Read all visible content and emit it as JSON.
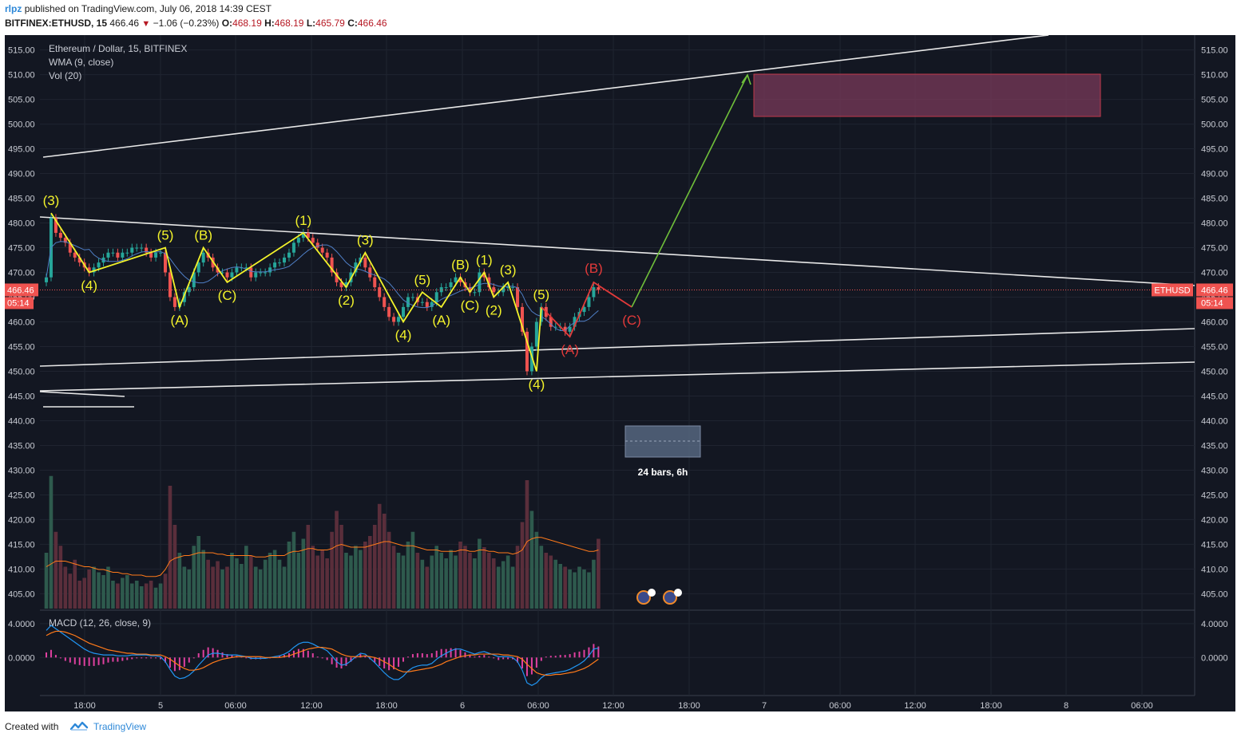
{
  "header": {
    "user": "rlpz",
    "published": "published on TradingView.com, July 06, 2018 14:39 CEST",
    "symbol": "BITFINEX:ETHUSD, 15",
    "last": "466.46",
    "change": "−1.06 (−0.23%)",
    "o_label": "O:",
    "o_value": "468.19",
    "h_label": "H:",
    "h_value": "468.19",
    "l_label": "L:",
    "l_value": "465.79",
    "c_label": "C:",
    "c_value": "466.46"
  },
  "legend": {
    "title": "Ethereum / Dollar, 15, BITFINEX",
    "wma": "WMA (9, close)",
    "vol": "Vol (20)",
    "macd": "MACD (12, 26, close, 9)"
  },
  "footer": {
    "created_with": "Created with",
    "brand": "TradingView"
  },
  "colors": {
    "background": "#131722",
    "grid": "#1f2430",
    "axis_text": "#c9ccd4",
    "up": "#26a69a",
    "down": "#ef5350",
    "wave_yellow": "#f3f32a",
    "wave_red": "#e33a3a",
    "trend_white": "#e8e8e8",
    "target_arrow": "#6fbf3a",
    "target_box": "#7a3a5a",
    "macd": "#2196f3",
    "signal": "#ff7a1a",
    "histogram": "#e040a0"
  },
  "chart_data": {
    "type": "candlestick",
    "symbol": "ETHUSD",
    "exchange": "BITFINEX",
    "interval": "15",
    "price_axis": {
      "ylim": [
        402,
        518
      ],
      "ticks": [
        "515.00",
        "510.00",
        "505.00",
        "500.00",
        "495.00",
        "490.00",
        "485.00",
        "480.00",
        "475.00",
        "470.00",
        "465.00",
        "460.00",
        "455.00",
        "450.00",
        "445.00",
        "440.00",
        "435.00",
        "430.00",
        "425.00",
        "420.00",
        "415.00",
        "410.00",
        "405.00"
      ]
    },
    "time_axis": {
      "ticks": [
        "18:00",
        "5",
        "06:00",
        "12:00",
        "18:00",
        "6",
        "06:00",
        "12:00",
        "18:00",
        "7",
        "06:00",
        "12:00",
        "18:00",
        "8",
        "06:00"
      ]
    },
    "last_price": "466.46",
    "last_price_label": "ETHUSD",
    "countdown": "05:14",
    "price_path": [
      [
        0,
        469
      ],
      [
        1,
        481
      ],
      [
        2,
        478
      ],
      [
        3,
        477
      ],
      [
        4,
        476
      ],
      [
        5,
        474
      ],
      [
        6,
        473
      ],
      [
        7,
        472
      ],
      [
        8,
        471
      ],
      [
        9,
        470
      ],
      [
        10,
        471
      ],
      [
        11,
        472
      ],
      [
        12,
        473
      ],
      [
        13,
        474
      ],
      [
        14,
        474
      ],
      [
        15,
        473
      ],
      [
        16,
        474
      ],
      [
        17,
        474
      ],
      [
        18,
        475
      ],
      [
        19,
        475
      ],
      [
        20,
        475
      ],
      [
        21,
        474
      ],
      [
        22,
        473
      ],
      [
        23,
        474
      ],
      [
        24,
        474
      ],
      [
        25,
        470
      ],
      [
        26,
        465
      ],
      [
        27,
        463
      ],
      [
        28,
        464
      ],
      [
        29,
        466
      ],
      [
        30,
        467
      ],
      [
        31,
        470
      ],
      [
        32,
        472
      ],
      [
        33,
        474
      ],
      [
        34,
        473
      ],
      [
        35,
        471
      ],
      [
        36,
        470
      ],
      [
        37,
        470
      ],
      [
        38,
        469
      ],
      [
        39,
        470
      ],
      [
        40,
        471
      ],
      [
        41,
        471
      ],
      [
        42,
        471
      ],
      [
        43,
        469
      ],
      [
        44,
        470
      ],
      [
        45,
        470
      ],
      [
        46,
        470
      ],
      [
        47,
        471
      ],
      [
        48,
        472
      ],
      [
        49,
        472
      ],
      [
        50,
        473
      ],
      [
        51,
        474
      ],
      [
        52,
        476
      ],
      [
        53,
        477
      ],
      [
        54,
        478
      ],
      [
        55,
        477
      ],
      [
        56,
        476
      ],
      [
        57,
        475
      ],
      [
        58,
        474
      ],
      [
        59,
        473
      ],
      [
        60,
        470
      ],
      [
        61,
        468
      ],
      [
        62,
        467
      ],
      [
        63,
        468
      ],
      [
        64,
        470
      ],
      [
        65,
        472
      ],
      [
        66,
        473
      ],
      [
        67,
        471
      ],
      [
        68,
        469
      ],
      [
        69,
        467
      ],
      [
        70,
        465
      ],
      [
        71,
        463
      ],
      [
        72,
        461
      ],
      [
        73,
        460
      ],
      [
        74,
        461
      ],
      [
        75,
        463
      ],
      [
        76,
        465
      ],
      [
        77,
        465
      ],
      [
        78,
        464
      ],
      [
        79,
        464
      ],
      [
        80,
        463
      ],
      [
        81,
        464
      ],
      [
        82,
        466
      ],
      [
        83,
        467
      ],
      [
        84,
        467
      ],
      [
        85,
        468
      ],
      [
        86,
        469
      ],
      [
        87,
        468
      ],
      [
        88,
        467
      ],
      [
        89,
        466
      ],
      [
        90,
        466
      ],
      [
        91,
        470
      ],
      [
        92,
        469
      ],
      [
        93,
        467
      ],
      [
        94,
        466
      ],
      [
        95,
        466
      ],
      [
        96,
        467
      ],
      [
        97,
        467
      ],
      [
        98,
        467
      ],
      [
        99,
        463
      ],
      [
        100,
        458
      ],
      [
        101,
        450
      ],
      [
        102,
        455
      ],
      [
        103,
        460
      ],
      [
        104,
        463
      ],
      [
        105,
        461
      ],
      [
        106,
        459
      ],
      [
        107,
        459
      ],
      [
        108,
        459
      ],
      [
        109,
        458
      ],
      [
        110,
        459
      ],
      [
        111,
        461
      ],
      [
        112,
        462
      ],
      [
        113,
        463
      ],
      [
        114,
        465
      ],
      [
        115,
        467
      ],
      [
        116,
        466.46
      ]
    ],
    "volume": {
      "series_name": "Vol (20)",
      "scale_max": 100,
      "bars": [
        40,
        95,
        55,
        45,
        30,
        25,
        35,
        20,
        22,
        28,
        30,
        26,
        24,
        30,
        20,
        18,
        22,
        24,
        18,
        20,
        16,
        18,
        20,
        15,
        18,
        25,
        88,
        60,
        40,
        30,
        28,
        45,
        52,
        42,
        35,
        30,
        34,
        28,
        30,
        40,
        36,
        32,
        45,
        38,
        30,
        28,
        35,
        40,
        42,
        35,
        30,
        48,
        55,
        40,
        50,
        60,
        45,
        38,
        42,
        36,
        55,
        70,
        60,
        40,
        38,
        45,
        42,
        48,
        52,
        60,
        75,
        68,
        55,
        45,
        40,
        38,
        48,
        55,
        40,
        35,
        30,
        38,
        45,
        40,
        36,
        42,
        38,
        48,
        45,
        40,
        36,
        50,
        44,
        40,
        36,
        30,
        34,
        38,
        30,
        45,
        62,
        92,
        70,
        55,
        45,
        40,
        38,
        35,
        32,
        30,
        28,
        26,
        30,
        28,
        26,
        35,
        50
      ],
      "ma": [
        30,
        32,
        34,
        34,
        34,
        33,
        32,
        31,
        30,
        30,
        29,
        28,
        28,
        27,
        26,
        26,
        25,
        25,
        24,
        24,
        24,
        23,
        23,
        23,
        24,
        28,
        34,
        36,
        37,
        38,
        38,
        39,
        40,
        40,
        40,
        40,
        39,
        39,
        38,
        38,
        38,
        38,
        38,
        38,
        37,
        37,
        37,
        38,
        38,
        38,
        38,
        40,
        41,
        41,
        42,
        43,
        43,
        42,
        42,
        42,
        43,
        45,
        46,
        45,
        44,
        44,
        44,
        44,
        45,
        46,
        47,
        48,
        48,
        47,
        46,
        45,
        45,
        45,
        44,
        43,
        42,
        42,
        42,
        41,
        41,
        41,
        41,
        42,
        42,
        41,
        41,
        42,
        42,
        41,
        41,
        40,
        40,
        40,
        39,
        40,
        42,
        48,
        50,
        51,
        51,
        50,
        49,
        48,
        47,
        46,
        45,
        44,
        43,
        42,
        41,
        41,
        42
      ]
    },
    "macd": {
      "series": [
        "MACD (12, 26, close, 9)"
      ],
      "ylim": [
        -4.5,
        5.5
      ],
      "ticks": [
        "4.0000",
        "0.0000"
      ],
      "macd_line": [
        3.2,
        3.8,
        3.4,
        3.0,
        2.6,
        2.2,
        1.8,
        1.4,
        1.0,
        0.7,
        0.5,
        0.4,
        0.3,
        0.3,
        0.3,
        0.2,
        0.2,
        0.2,
        0.3,
        0.3,
        0.3,
        0.3,
        0.2,
        0.2,
        0.1,
        -0.5,
        -1.4,
        -2.2,
        -2.5,
        -2.4,
        -2.1,
        -1.6,
        -0.9,
        -0.3,
        0.3,
        0.5,
        0.5,
        0.4,
        0.3,
        0.3,
        0.3,
        0.2,
        0.1,
        -0.1,
        -0.1,
        -0.1,
        -0.1,
        0.0,
        0.1,
        0.2,
        0.4,
        0.7,
        1.2,
        1.6,
        1.8,
        1.8,
        1.6,
        1.3,
        1.1,
        0.8,
        0.2,
        -0.5,
        -0.9,
        -0.8,
        -0.4,
        0.1,
        0.5,
        0.4,
        -0.1,
        -0.6,
        -1.2,
        -1.8,
        -2.3,
        -2.6,
        -2.6,
        -2.2,
        -1.6,
        -1.2,
        -1.0,
        -0.9,
        -0.9,
        -0.7,
        -0.2,
        0.2,
        0.5,
        0.8,
        1.0,
        1.0,
        0.8,
        0.6,
        0.4,
        0.6,
        0.7,
        0.5,
        0.3,
        0.1,
        0.1,
        0.1,
        0.0,
        -0.5,
        -1.5,
        -3.0,
        -3.3,
        -3.0,
        -2.4,
        -2.0,
        -1.9,
        -1.8,
        -1.7,
        -1.6,
        -1.4,
        -1.1,
        -0.8,
        -0.4,
        0.2,
        1.0,
        1.1
      ],
      "signal_line": [
        2.6,
        2.9,
        3.1,
        3.1,
        3.0,
        2.8,
        2.6,
        2.3,
        2.0,
        1.7,
        1.5,
        1.3,
        1.1,
        0.9,
        0.8,
        0.7,
        0.6,
        0.5,
        0.5,
        0.4,
        0.4,
        0.4,
        0.3,
        0.3,
        0.3,
        0.1,
        -0.2,
        -0.6,
        -1.0,
        -1.3,
        -1.5,
        -1.5,
        -1.4,
        -1.2,
        -0.9,
        -0.6,
        -0.4,
        -0.2,
        -0.1,
        0.0,
        0.1,
        0.1,
        0.1,
        0.1,
        0.1,
        0.1,
        0.0,
        0.0,
        0.0,
        0.0,
        0.1,
        0.2,
        0.4,
        0.6,
        0.8,
        1.0,
        1.1,
        1.2,
        1.2,
        1.1,
        1.0,
        0.7,
        0.4,
        0.2,
        0.1,
        0.1,
        0.1,
        0.2,
        0.1,
        0.0,
        -0.2,
        -0.5,
        -0.8,
        -1.2,
        -1.5,
        -1.7,
        -1.7,
        -1.6,
        -1.5,
        -1.4,
        -1.3,
        -1.2,
        -1.0,
        -0.8,
        -0.5,
        -0.3,
        -0.1,
        0.1,
        0.2,
        0.3,
        0.3,
        0.4,
        0.4,
        0.4,
        0.4,
        0.4,
        0.3,
        0.3,
        0.2,
        0.1,
        -0.2,
        -0.8,
        -1.3,
        -1.8,
        -2.0,
        -2.1,
        -2.1,
        -2.0,
        -2.0,
        -1.9,
        -1.8,
        -1.7,
        -1.5,
        -1.3,
        -1.0,
        -0.6,
        -0.2
      ]
    },
    "trendlines_note": "",
    "annotations": {
      "yellow_waves": [
        {
          "label": "(3)",
          "t": 1,
          "p": 482
        },
        {
          "label": "(4)",
          "t": 9,
          "p": 470
        },
        {
          "label": "(5)",
          "t": 25,
          "p": 475
        },
        {
          "label": "(A)",
          "t": 28,
          "p": 463
        },
        {
          "label": "(B)",
          "t": 33,
          "p": 475
        },
        {
          "label": "(C)",
          "t": 38,
          "p": 468
        },
        {
          "label": "(1)",
          "t": 54,
          "p": 478
        },
        {
          "label": "(2)",
          "t": 63,
          "p": 467
        },
        {
          "label": "(3)",
          "t": 67,
          "p": 474
        },
        {
          "label": "(4)",
          "t": 75,
          "p": 460
        },
        {
          "label": "(5)",
          "t": 79,
          "p": 466
        },
        {
          "label": "(A)",
          "t": 83,
          "p": 463
        },
        {
          "label": "(B)",
          "t": 87,
          "p": 469
        },
        {
          "label": "(C)",
          "t": 89,
          "p": 466
        },
        {
          "label": "(1)",
          "t": 92,
          "p": 470
        },
        {
          "label": "(2)",
          "t": 94,
          "p": 465
        },
        {
          "label": "(3)",
          "t": 97,
          "p": 468
        },
        {
          "label": "(4)",
          "t": 103,
          "p": 450
        },
        {
          "label": "(5)",
          "t": 104,
          "p": 463
        }
      ],
      "red_waves": [
        {
          "label": "(A)",
          "t": 110,
          "p": 457
        },
        {
          "label": "(B)",
          "t": 115,
          "p": 468
        },
        {
          "label": "(C)",
          "t": 123,
          "p": 463
        }
      ],
      "date_range_label": "24 bars, 6h"
    }
  }
}
